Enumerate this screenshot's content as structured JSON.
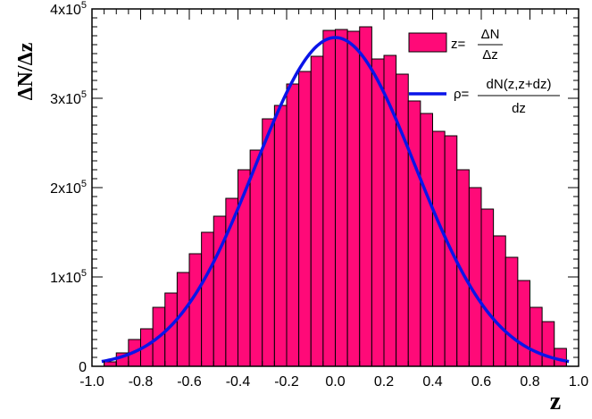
{
  "chart_data": {
    "type": "bar",
    "ylabel": "ΔN/Δz",
    "xlabel": "z",
    "xlim": [
      -1.0,
      1.0
    ],
    "ylim": [
      0,
      400000
    ],
    "xticks": [
      "-1.0",
      "-0.8",
      "-0.6",
      "-0.4",
      "-0.2",
      "0.0",
      "0.2",
      "0.4",
      "0.6",
      "0.8",
      "1.0"
    ],
    "yticks": [
      {
        "value": 0,
        "mantissa": "0",
        "exponent": ""
      },
      {
        "value": 100000,
        "mantissa": "1x10",
        "exponent": "5"
      },
      {
        "value": 200000,
        "mantissa": "2x10",
        "exponent": "5"
      },
      {
        "value": 300000,
        "mantissa": "3x10",
        "exponent": "5"
      },
      {
        "value": 400000,
        "mantissa": "4x10",
        "exponent": "5"
      }
    ],
    "bin_width": 0.05,
    "series": [
      {
        "name": "histogram",
        "color": "#ff0a78",
        "x": [
          -0.975,
          -0.925,
          -0.875,
          -0.825,
          -0.775,
          -0.725,
          -0.675,
          -0.625,
          -0.575,
          -0.525,
          -0.475,
          -0.425,
          -0.375,
          -0.325,
          -0.275,
          -0.225,
          -0.175,
          -0.125,
          -0.075,
          -0.025,
          0.025,
          0.075,
          0.125,
          0.175,
          0.225,
          0.275,
          0.325,
          0.375,
          0.425,
          0.475,
          0.525,
          0.575,
          0.625,
          0.675,
          0.725,
          0.775,
          0.825,
          0.875,
          0.925,
          0.975
        ],
        "values": [
          0,
          5000,
          15000,
          30000,
          42000,
          66000,
          82000,
          105000,
          126000,
          150000,
          168000,
          188000,
          220000,
          242000,
          277000,
          292000,
          316000,
          330000,
          347000,
          376000,
          377000,
          375000,
          380000,
          344000,
          348000,
          327000,
          297000,
          283000,
          263000,
          258000,
          220000,
          200000,
          176000,
          146000,
          122000,
          96000,
          66000,
          50000,
          20000,
          0
        ]
      },
      {
        "name": "density",
        "color": "#0a14e8",
        "curve": {
          "peak": 368000,
          "sigma": 0.33,
          "xmin": -0.96,
          "xmax": 0.96
        }
      }
    ],
    "legend": {
      "placement": "top-right",
      "entries": [
        {
          "prefix": "z=",
          "numerator": "ΔN",
          "denominator": "Δz"
        },
        {
          "prefix": "ρ=",
          "numerator": "dN(z,z+dz)",
          "denominator": "dz"
        }
      ]
    }
  }
}
